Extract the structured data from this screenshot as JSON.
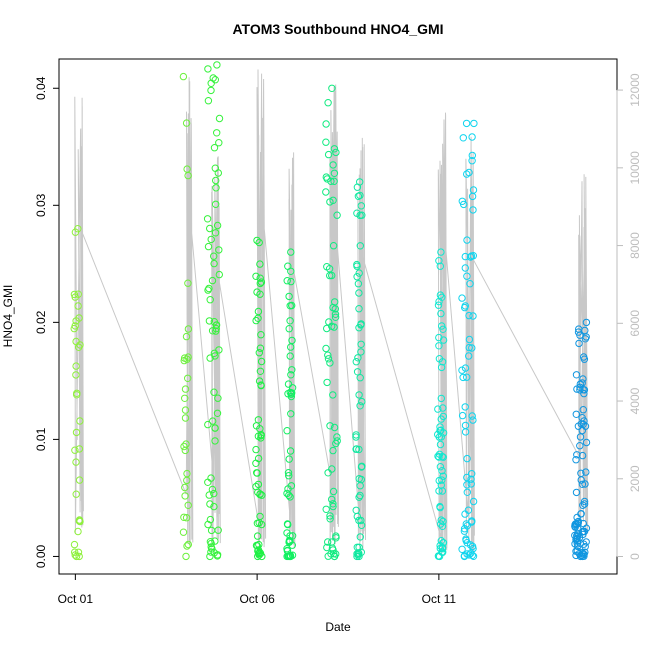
{
  "chart_data": {
    "type": "scatter",
    "title": "ATOM3 Southbound HNO4_GMI",
    "xlabel": "Date",
    "ylabel": "HNO4_GMI",
    "x_ticks": [
      {
        "label": "Oct 01",
        "day": 1.0
      },
      {
        "label": "Oct 06",
        "day": 6.0
      },
      {
        "label": "Oct 11",
        "day": 11.0
      }
    ],
    "xlim_days": [
      0.55,
      15.9
    ],
    "y_ticks": [
      0.0,
      0.01,
      0.02,
      0.03,
      0.04
    ],
    "y_tick_labels": [
      "0.00",
      "0.01",
      "0.02",
      "0.03",
      "0.04"
    ],
    "ylim": [
      -0.0015,
      0.0425
    ],
    "y2_ticks": [
      0,
      2000,
      4000,
      6000,
      8000,
      10000,
      12000
    ],
    "y2_tick_labels": [
      "0",
      "2000",
      "4000",
      "6000",
      "8000",
      "10000",
      "12000"
    ],
    "y2lim": [
      -450,
      12800
    ],
    "y2_color": "#bdbdbd",
    "secondary_series_color": "#c8c8c8",
    "flights": [
      {
        "day": 1.05,
        "color": "#8ef03c",
        "vmin": 0.0,
        "vmax": 0.028,
        "n": 34,
        "altmax": 12000,
        "altlow": 3000
      },
      {
        "day": 4.05,
        "color": "#6cf03c",
        "vmin": 0.0,
        "vmax": 0.041,
        "n": 30,
        "altmax": 12500,
        "altlow": 1600
      },
      {
        "day": 4.8,
        "color": "#36f23c",
        "vmin": 0.0,
        "vmax": 0.042,
        "n": 70,
        "altmax": 10500,
        "altlow": 2000
      },
      {
        "day": 6.05,
        "color": "#1ef044",
        "vmin": 0.0,
        "vmax": 0.027,
        "n": 55,
        "altmax": 12600,
        "altlow": 800
      },
      {
        "day": 6.9,
        "color": "#10f060",
        "vmin": 0.0,
        "vmax": 0.026,
        "n": 55,
        "altmax": 10500,
        "altlow": 1100
      },
      {
        "day": 8.05,
        "color": "#10eb80",
        "vmin": 0.0,
        "vmax": 0.04,
        "n": 65,
        "altmax": 12200,
        "altlow": 1900
      },
      {
        "day": 8.8,
        "color": "#10e8a0",
        "vmin": 0.0,
        "vmax": 0.032,
        "n": 55,
        "altmax": 11000,
        "altlow": 1100
      },
      {
        "day": 11.05,
        "color": "#10e8d0",
        "vmin": 0.0,
        "vmax": 0.026,
        "n": 60,
        "altmax": 11800,
        "altlow": 500
      },
      {
        "day": 11.8,
        "color": "#10d4ee",
        "vmin": 0.0,
        "vmax": 0.037,
        "n": 70,
        "altmax": 11000,
        "altlow": 1100
      },
      {
        "day": 14.9,
        "color": "#1096e0",
        "vmin": 0.0,
        "vmax": 0.02,
        "n": 90,
        "altmax": 10000,
        "altlow": 2500
      }
    ]
  }
}
